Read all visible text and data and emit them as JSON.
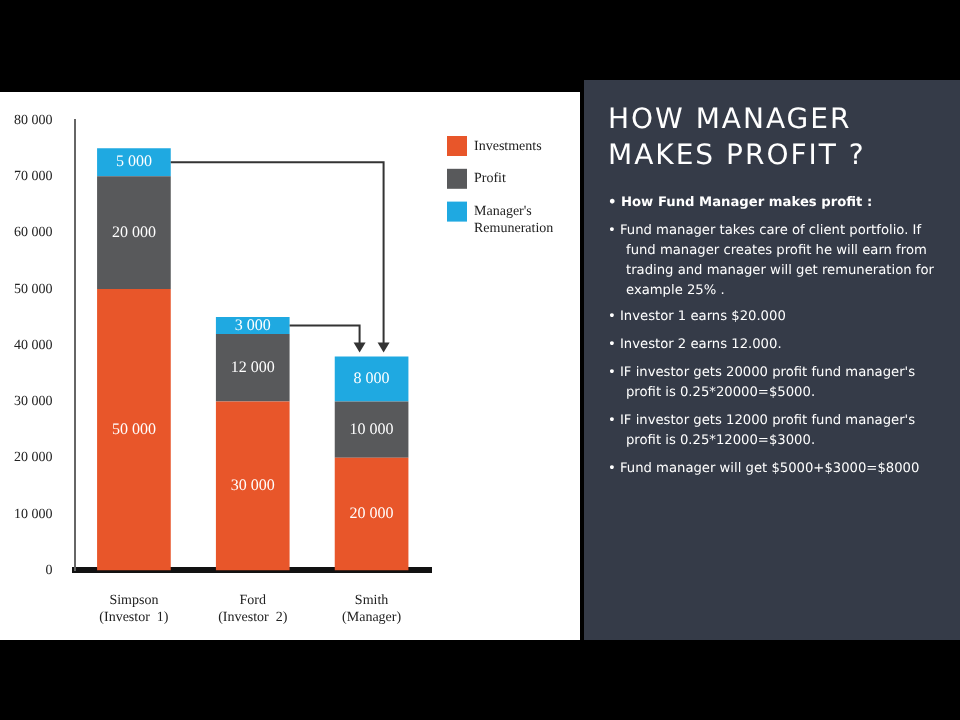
{
  "chart_data": {
    "type": "bar",
    "stacked": true,
    "title": "HOW MANAGER MAKES PROFIT ?",
    "categories": [
      "Simpson\n(Investor  1)",
      "Ford\n(Investor  2)",
      "Smith\n(Manager)"
    ],
    "series": [
      {
        "name": "Investments",
        "color": "#e8562a",
        "values": [
          50000,
          30000,
          20000
        ],
        "value_labels": [
          "50 000",
          "30 000",
          "20 000"
        ]
      },
      {
        "name": "Profit",
        "color": "#58595b",
        "values": [
          20000,
          12000,
          10000
        ],
        "value_labels": [
          "20 000",
          "12 000",
          "10 000"
        ]
      },
      {
        "name": "Manager's Remuneration",
        "color": "#1fa9e1",
        "values": [
          5000,
          3000,
          8000
        ],
        "value_labels": [
          "5 000",
          "3 000",
          "8 000"
        ]
      }
    ],
    "ylim": [
      0,
      80000
    ],
    "yticks": [
      {
        "value": 0,
        "label": "0"
      },
      {
        "value": 10000,
        "label": "10 000"
      },
      {
        "value": 20000,
        "label": "20 000"
      },
      {
        "value": 30000,
        "label": "30 000"
      },
      {
        "value": 40000,
        "label": "40 000"
      },
      {
        "value": 50000,
        "label": "50 000"
      },
      {
        "value": 60000,
        "label": "60 000"
      },
      {
        "value": 70000,
        "label": "70 000"
      },
      {
        "value": 80000,
        "label": "80 000"
      }
    ],
    "grid": false,
    "legend": "right",
    "annotations": [
      "• How Fund Manager makes profit :",
      "• Fund manager takes care of client portfolio. If fund manager creates profit he will earn from trading and manager will get  remuneration for example 25% .",
      "• Investor 1  earns $20.000",
      "•  Investor 2 earns 12.000.",
      "• IF investor gets 20000 profit fund manager's profit is 0.25*20000=$5000.",
      "• IF investor gets 12000 profit fund manager's profit is 0.25*12000=$3000.",
      "• Fund manager will get $5000+$3000=$8000"
    ]
  }
}
